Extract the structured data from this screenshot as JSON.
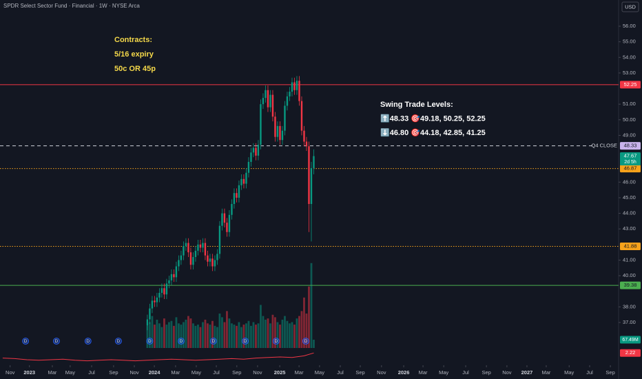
{
  "title": "SPDR Select Sector Fund · Financial · 1W · NYSE Arca",
  "currency": "USD",
  "chart_data": {
    "type": "candlestick",
    "categories": [
      null,
      null,
      null,
      null,
      null,
      null,
      null,
      null,
      null,
      null,
      null,
      null,
      null,
      null,
      null,
      null,
      null,
      null,
      null,
      null,
      null,
      null,
      null,
      null,
      null,
      null,
      null,
      null,
      null,
      null,
      null,
      null,
      null,
      null,
      null,
      null,
      null,
      null,
      null,
      null,
      null,
      null,
      null,
      null,
      null,
      null,
      null,
      null,
      null,
      null,
      null,
      null,
      null,
      null,
      null,
      null,
      null,
      null,
      null,
      null,
      null,
      null,
      null,
      null,
      null,
      null,
      null,
      null,
      null,
      null
    ],
    "open": [
      36.8,
      37.2,
      37.9,
      38.4,
      38.3,
      38.6,
      38.9,
      39.2,
      38.8,
      39.5,
      39.7,
      40.1,
      39.9,
      40.6,
      41.0,
      41.3,
      41.9,
      42.1,
      41.5,
      40.7,
      41.2,
      41.6,
      42.0,
      41.8,
      42.1,
      41.3,
      40.9,
      41.1,
      40.6,
      41.0,
      41.4,
      43.2,
      44.0,
      43.4,
      42.8,
      43.9,
      44.6,
      45.3,
      45.0,
      45.8,
      46.2,
      45.9,
      46.6,
      47.3,
      47.9,
      48.2,
      47.7,
      48.4,
      51.0,
      51.4,
      51.9,
      50.8,
      51.6,
      50.2,
      48.9,
      49.6,
      48.7,
      49.3,
      50.9,
      51.5,
      51.8,
      52.4,
      51.9,
      52.5,
      51.2,
      49.3,
      48.6,
      48.3,
      44.6,
      46.9
    ],
    "high": [
      37.5,
      38.2,
      38.7,
      38.7,
      38.9,
      39.2,
      39.5,
      39.5,
      39.8,
      40.0,
      40.4,
      40.4,
      40.9,
      41.3,
      41.6,
      42.2,
      42.4,
      42.4,
      41.8,
      41.5,
      41.9,
      42.3,
      42.3,
      42.4,
      42.4,
      41.6,
      41.4,
      41.4,
      41.3,
      41.7,
      43.5,
      44.3,
      44.3,
      43.7,
      44.2,
      44.9,
      45.6,
      45.6,
      46.1,
      46.5,
      46.5,
      46.9,
      47.6,
      48.2,
      48.5,
      48.5,
      48.7,
      51.3,
      51.7,
      52.2,
      52.2,
      51.9,
      51.9,
      50.5,
      49.9,
      49.9,
      49.6,
      51.2,
      51.8,
      52.1,
      52.7,
      52.7,
      52.8,
      52.8,
      51.5,
      49.6,
      48.9,
      48.6,
      47.3,
      48.1
    ],
    "low": [
      36.5,
      36.9,
      37.6,
      38.0,
      38.0,
      38.3,
      38.6,
      38.5,
      38.5,
      39.2,
      39.4,
      39.6,
      39.6,
      40.3,
      40.7,
      41.0,
      41.6,
      41.2,
      40.4,
      40.4,
      40.9,
      41.3,
      41.5,
      41.5,
      41.0,
      40.6,
      40.6,
      40.3,
      40.3,
      40.7,
      41.1,
      42.9,
      43.1,
      42.5,
      42.5,
      43.6,
      44.3,
      44.7,
      44.7,
      45.5,
      45.6,
      45.6,
      46.3,
      47.0,
      47.6,
      47.4,
      47.4,
      48.1,
      50.7,
      51.1,
      50.5,
      50.5,
      49.9,
      48.6,
      48.6,
      48.4,
      48.4,
      49.0,
      50.6,
      51.2,
      51.5,
      51.6,
      51.6,
      50.9,
      49.0,
      48.3,
      48.0,
      42.8,
      42.2,
      46.5
    ],
    "close": [
      37.2,
      37.9,
      38.4,
      38.3,
      38.6,
      38.9,
      39.2,
      38.8,
      39.5,
      39.7,
      40.1,
      39.9,
      40.6,
      41.0,
      41.3,
      41.9,
      42.1,
      41.5,
      40.7,
      41.2,
      41.6,
      42.0,
      41.8,
      42.1,
      41.3,
      40.9,
      41.1,
      40.6,
      41.0,
      41.4,
      43.2,
      44.0,
      43.4,
      42.8,
      43.9,
      44.6,
      45.3,
      45.0,
      45.8,
      46.2,
      45.9,
      46.6,
      47.3,
      47.9,
      48.2,
      47.7,
      48.4,
      51.0,
      51.4,
      51.9,
      50.8,
      51.6,
      50.2,
      48.9,
      49.6,
      48.7,
      49.3,
      50.9,
      51.5,
      51.8,
      52.4,
      51.9,
      52.5,
      51.2,
      49.3,
      48.6,
      48.3,
      44.6,
      46.9,
      47.67
    ],
    "up_color": "#089981",
    "down_color": "#f23645",
    "volume": [
      180,
      210,
      260,
      190,
      230,
      200,
      170,
      240,
      190,
      210,
      220,
      180,
      250,
      200,
      190,
      210,
      230,
      260,
      240,
      200,
      180,
      190,
      170,
      210,
      230,
      200,
      190,
      220,
      180,
      170,
      280,
      250,
      210,
      300,
      240,
      200,
      190,
      180,
      210,
      170,
      190,
      200,
      220,
      180,
      210,
      190,
      200,
      350,
      260,
      230,
      240,
      200,
      270,
      250,
      210,
      190,
      230,
      260,
      220,
      200,
      210,
      190,
      240,
      260,
      300,
      410,
      280,
      500,
      690,
      67.49
    ],
    "vlim": [
      0,
      700
    ],
    "volume_label": "67.49M",
    "xlim": [
      -61.1,
      195.4
    ],
    "xticks": [
      {
        "value": -56.9,
        "label": "Nov"
      },
      {
        "value": -48.9,
        "label": "2023"
      },
      {
        "value": -39.4,
        "label": "Mar"
      },
      {
        "value": -32,
        "label": "May"
      },
      {
        "value": -23.1,
        "label": "Jul"
      },
      {
        "value": -14,
        "label": "Sep"
      },
      {
        "value": -5.4,
        "label": "Nov"
      },
      {
        "value": 2.9,
        "label": "2024"
      },
      {
        "value": 11.7,
        "label": "Mar"
      },
      {
        "value": 20.3,
        "label": "May"
      },
      {
        "value": 28.6,
        "label": "Jul"
      },
      {
        "value": 37.1,
        "label": "Sep"
      },
      {
        "value": 45.7,
        "label": "Nov"
      },
      {
        "value": 54.9,
        "label": "2025"
      },
      {
        "value": 62.9,
        "label": "Mar"
      },
      {
        "value": 71.4,
        "label": "May"
      },
      {
        "value": 80,
        "label": "Jul"
      },
      {
        "value": 88.3,
        "label": "Sep"
      },
      {
        "value": 97.1,
        "label": "Nov"
      },
      {
        "value": 106.3,
        "label": "2026"
      },
      {
        "value": 114.3,
        "label": "Mar"
      },
      {
        "value": 122.9,
        "label": "May"
      },
      {
        "value": 132,
        "label": "Jul"
      },
      {
        "value": 140.6,
        "label": "Sep"
      },
      {
        "value": 149.1,
        "label": "Nov"
      },
      {
        "value": 157.4,
        "label": "2027"
      },
      {
        "value": 165.4,
        "label": "Mar"
      },
      {
        "value": 174.9,
        "label": "May"
      },
      {
        "value": 183.4,
        "label": "Jul"
      },
      {
        "value": 192,
        "label": "Sep"
      }
    ],
    "ylim": [
      34.26,
      57.68
    ],
    "yticks": [
      {
        "value": 56,
        "label": "56.00"
      },
      {
        "value": 55,
        "label": "55.00"
      },
      {
        "value": 54,
        "label": "54.00"
      },
      {
        "value": 53,
        "label": "53.00"
      },
      {
        "value": 51,
        "label": "51.00"
      },
      {
        "value": 50,
        "label": "50.00"
      },
      {
        "value": 49,
        "label": "49.00"
      },
      {
        "value": 46,
        "label": "46.00"
      },
      {
        "value": 45,
        "label": "45.00"
      },
      {
        "value": 44,
        "label": "44.00"
      },
      {
        "value": 43,
        "label": "43.00"
      },
      {
        "value": 41,
        "label": "41.00"
      },
      {
        "value": 40,
        "label": "40.00"
      },
      {
        "value": 38,
        "label": "38.00"
      },
      {
        "value": 37,
        "label": "37.00"
      }
    ],
    "levels": [
      {
        "value": 52.25,
        "label": "52.25",
        "color": "#f23645",
        "style": "solid"
      },
      {
        "value": 48.33,
        "label": "48.33",
        "color": "#c9b3ec",
        "line_color": "#d1d4dc",
        "style": "dashed",
        "name": "Q4 CLOSE"
      },
      {
        "value": 46.87,
        "label": "46.87",
        "color": "#f7a21b",
        "style": "dotted"
      },
      {
        "value": 41.88,
        "label": "41.88",
        "color": "#f7a21b",
        "style": "dotted"
      },
      {
        "value": 39.38,
        "label": "39.38",
        "color": "#4caf50",
        "style": "solid"
      }
    ],
    "last_price": {
      "value": 47.67,
      "label": "47.67",
      "countdown": "2d 5h"
    },
    "dividends": [
      {
        "x": -50.5,
        "label": "D"
      },
      {
        "x": -37.7,
        "label": "D"
      },
      {
        "x": -24.6,
        "label": "D"
      },
      {
        "x": -12,
        "label": "D"
      },
      {
        "x": 1,
        "label": "D"
      },
      {
        "x": 14,
        "label": "D"
      },
      {
        "x": 27.4,
        "label": "D"
      },
      {
        "x": 40.6,
        "label": "D"
      },
      {
        "x": 53.4,
        "label": "D"
      },
      {
        "x": 65.7,
        "label": "D"
      }
    ],
    "indicator": {
      "x": [
        -60,
        -55,
        -50,
        -45,
        -40,
        -35,
        -30,
        -25,
        -20,
        -15,
        -10,
        -5,
        0,
        5,
        10,
        15,
        20,
        25,
        30,
        35,
        40,
        45,
        50,
        55,
        60,
        65,
        69
      ],
      "values": [
        1.3,
        1.2,
        1.0,
        0.9,
        1.0,
        1.1,
        0.9,
        0.8,
        0.9,
        1.0,
        0.9,
        0.8,
        0.9,
        1.0,
        1.1,
        1.0,
        0.9,
        1.0,
        1.1,
        1.2,
        1.1,
        1.3,
        1.4,
        1.5,
        1.4,
        1.7,
        2.22
      ],
      "ylim": [
        0,
        3
      ],
      "label": "2.22",
      "color": "#f23645"
    },
    "notes": {
      "color": "#f5d94a",
      "lines": [
        "Contracts:",
        "5/16 expiry",
        "50c OR 45p"
      ]
    },
    "swing_levels": {
      "color": "#ffffff",
      "lines": [
        "Swing Trade Levels:",
        "⬆️48.33 🎯49.18, 50.25, 52.25",
        "⬇️46.80 🎯44.18, 42.85, 41.25"
      ]
    }
  }
}
